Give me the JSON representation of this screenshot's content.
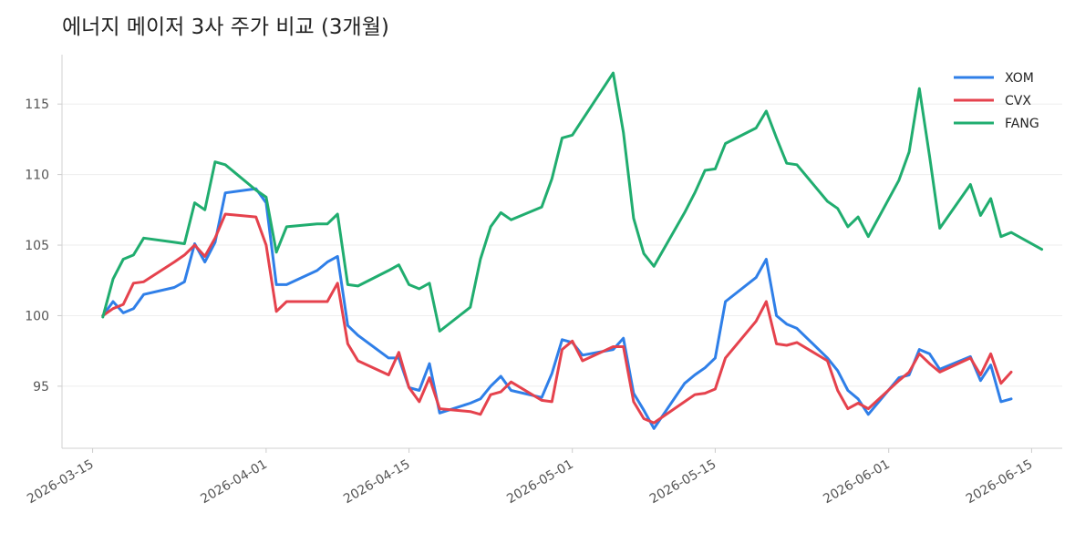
{
  "chart_data": {
    "type": "line",
    "title": "에너지 메이저 3사 주가 비교 (3개월)",
    "xlabel": "",
    "ylabel": "",
    "ylim": [
      90.6,
      118.5
    ],
    "xlim": [
      "2026-03-12",
      "2026-06-18"
    ],
    "grid": "y",
    "legend": "top-right",
    "yticks": [
      95,
      100,
      105,
      110,
      115
    ],
    "xticks": [
      "2026-03-15",
      "2026-04-01",
      "2026-04-15",
      "2026-05-01",
      "2026-05-15",
      "2026-06-01",
      "2026-06-15"
    ],
    "series": [
      {
        "name": "XOM",
        "color": "#2f7fe8",
        "points": [
          [
            "2026-03-16",
            100.0
          ],
          [
            "2026-03-17",
            101.0
          ],
          [
            "2026-03-18",
            100.2
          ],
          [
            "2026-03-19",
            100.5
          ],
          [
            "2026-03-20",
            101.5
          ],
          [
            "2026-03-23",
            102.0
          ],
          [
            "2026-03-24",
            102.4
          ],
          [
            "2026-03-25",
            105.1
          ],
          [
            "2026-03-26",
            103.8
          ],
          [
            "2026-03-27",
            105.2
          ],
          [
            "2026-03-28",
            108.7
          ],
          [
            "2026-03-31",
            109.0
          ],
          [
            "2026-04-01",
            108.0
          ],
          [
            "2026-04-02",
            102.2
          ],
          [
            "2026-04-03",
            102.2
          ],
          [
            "2026-04-06",
            103.2
          ],
          [
            "2026-04-07",
            103.8
          ],
          [
            "2026-04-08",
            104.2
          ],
          [
            "2026-04-09",
            99.3
          ],
          [
            "2026-04-10",
            98.6
          ],
          [
            "2026-04-13",
            97.0
          ],
          [
            "2026-04-14",
            97.0
          ],
          [
            "2026-04-15",
            94.9
          ],
          [
            "2026-04-16",
            94.7
          ],
          [
            "2026-04-17",
            96.6
          ],
          [
            "2026-04-18",
            93.1
          ],
          [
            "2026-04-21",
            93.8
          ],
          [
            "2026-04-22",
            94.1
          ],
          [
            "2026-04-23",
            95.0
          ],
          [
            "2026-04-24",
            95.7
          ],
          [
            "2026-04-25",
            94.7
          ],
          [
            "2026-04-28",
            94.2
          ],
          [
            "2026-04-29",
            95.9
          ],
          [
            "2026-04-30",
            98.3
          ],
          [
            "2026-05-01",
            98.1
          ],
          [
            "2026-05-02",
            97.2
          ],
          [
            "2026-05-05",
            97.6
          ],
          [
            "2026-05-06",
            98.4
          ],
          [
            "2026-05-07",
            94.5
          ],
          [
            "2026-05-08",
            93.3
          ],
          [
            "2026-05-09",
            92.0
          ],
          [
            "2026-05-12",
            95.2
          ],
          [
            "2026-05-13",
            95.8
          ],
          [
            "2026-05-14",
            96.3
          ],
          [
            "2026-05-15",
            97.0
          ],
          [
            "2026-05-16",
            101.0
          ],
          [
            "2026-05-19",
            102.7
          ],
          [
            "2026-05-20",
            104.0
          ],
          [
            "2026-05-21",
            100.0
          ],
          [
            "2026-05-22",
            99.4
          ],
          [
            "2026-05-23",
            99.1
          ],
          [
            "2026-05-26",
            97.0
          ],
          [
            "2026-05-27",
            96.1
          ],
          [
            "2026-05-28",
            94.7
          ],
          [
            "2026-05-29",
            94.1
          ],
          [
            "2026-05-30",
            93.0
          ],
          [
            "2026-06-02",
            95.6
          ],
          [
            "2026-06-03",
            95.8
          ],
          [
            "2026-06-04",
            97.6
          ],
          [
            "2026-06-05",
            97.3
          ],
          [
            "2026-06-06",
            96.2
          ],
          [
            "2026-06-09",
            97.1
          ],
          [
            "2026-06-10",
            95.4
          ],
          [
            "2026-06-11",
            96.5
          ],
          [
            "2026-06-12",
            93.9
          ],
          [
            "2026-06-13",
            94.1
          ]
        ]
      },
      {
        "name": "CVX",
        "color": "#e5424d",
        "points": [
          [
            "2026-03-16",
            100.0
          ],
          [
            "2026-03-17",
            100.5
          ],
          [
            "2026-03-18",
            100.8
          ],
          [
            "2026-03-19",
            102.3
          ],
          [
            "2026-03-20",
            102.4
          ],
          [
            "2026-03-23",
            103.8
          ],
          [
            "2026-03-24",
            104.3
          ],
          [
            "2026-03-25",
            105.0
          ],
          [
            "2026-03-26",
            104.2
          ],
          [
            "2026-03-27",
            105.5
          ],
          [
            "2026-03-28",
            107.2
          ],
          [
            "2026-03-31",
            107.0
          ],
          [
            "2026-04-01",
            105.0
          ],
          [
            "2026-04-02",
            100.3
          ],
          [
            "2026-04-03",
            101.0
          ],
          [
            "2026-04-06",
            101.0
          ],
          [
            "2026-04-07",
            101.0
          ],
          [
            "2026-04-08",
            102.3
          ],
          [
            "2026-04-09",
            98.0
          ],
          [
            "2026-04-10",
            96.8
          ],
          [
            "2026-04-13",
            95.8
          ],
          [
            "2026-04-14",
            97.4
          ],
          [
            "2026-04-15",
            94.9
          ],
          [
            "2026-04-16",
            93.9
          ],
          [
            "2026-04-17",
            95.6
          ],
          [
            "2026-04-18",
            93.4
          ],
          [
            "2026-04-21",
            93.2
          ],
          [
            "2026-04-22",
            93.0
          ],
          [
            "2026-04-23",
            94.4
          ],
          [
            "2026-04-24",
            94.6
          ],
          [
            "2026-04-25",
            95.3
          ],
          [
            "2026-04-28",
            94.0
          ],
          [
            "2026-04-29",
            93.9
          ],
          [
            "2026-04-30",
            97.6
          ],
          [
            "2026-05-01",
            98.2
          ],
          [
            "2026-05-02",
            96.8
          ],
          [
            "2026-05-05",
            97.8
          ],
          [
            "2026-05-06",
            97.8
          ],
          [
            "2026-05-07",
            93.9
          ],
          [
            "2026-05-08",
            92.7
          ],
          [
            "2026-05-09",
            92.4
          ],
          [
            "2026-05-12",
            93.9
          ],
          [
            "2026-05-13",
            94.4
          ],
          [
            "2026-05-14",
            94.5
          ],
          [
            "2026-05-15",
            94.8
          ],
          [
            "2026-05-16",
            97.0
          ],
          [
            "2026-05-19",
            99.6
          ],
          [
            "2026-05-20",
            101.0
          ],
          [
            "2026-05-21",
            98.0
          ],
          [
            "2026-05-22",
            97.9
          ],
          [
            "2026-05-23",
            98.1
          ],
          [
            "2026-05-26",
            96.8
          ],
          [
            "2026-05-27",
            94.7
          ],
          [
            "2026-05-28",
            93.4
          ],
          [
            "2026-05-29",
            93.8
          ],
          [
            "2026-05-30",
            93.4
          ],
          [
            "2026-06-02",
            95.4
          ],
          [
            "2026-06-03",
            96.0
          ],
          [
            "2026-06-04",
            97.3
          ],
          [
            "2026-06-05",
            96.6
          ],
          [
            "2026-06-06",
            96.0
          ],
          [
            "2026-06-09",
            97.0
          ],
          [
            "2026-06-10",
            95.8
          ],
          [
            "2026-06-11",
            97.3
          ],
          [
            "2026-06-12",
            95.2
          ],
          [
            "2026-06-13",
            96.0
          ]
        ]
      },
      {
        "name": "FANG",
        "color": "#20ad6f",
        "points": [
          [
            "2026-03-16",
            99.9
          ],
          [
            "2026-03-17",
            102.6
          ],
          [
            "2026-03-18",
            104.0
          ],
          [
            "2026-03-19",
            104.3
          ],
          [
            "2026-03-20",
            105.5
          ],
          [
            "2026-03-23",
            105.2
          ],
          [
            "2026-03-24",
            105.1
          ],
          [
            "2026-03-25",
            108.0
          ],
          [
            "2026-03-26",
            107.5
          ],
          [
            "2026-03-27",
            110.9
          ],
          [
            "2026-03-28",
            110.7
          ],
          [
            "2026-03-31",
            108.9
          ],
          [
            "2026-04-01",
            108.4
          ],
          [
            "2026-04-02",
            104.5
          ],
          [
            "2026-04-03",
            106.3
          ],
          [
            "2026-04-06",
            106.5
          ],
          [
            "2026-04-07",
            106.5
          ],
          [
            "2026-04-08",
            107.2
          ],
          [
            "2026-04-09",
            102.2
          ],
          [
            "2026-04-10",
            102.1
          ],
          [
            "2026-04-13",
            103.2
          ],
          [
            "2026-04-14",
            103.6
          ],
          [
            "2026-04-15",
            102.2
          ],
          [
            "2026-04-16",
            101.9
          ],
          [
            "2026-04-17",
            102.3
          ],
          [
            "2026-04-18",
            98.9
          ],
          [
            "2026-04-21",
            100.6
          ],
          [
            "2026-04-22",
            104.0
          ],
          [
            "2026-04-23",
            106.3
          ],
          [
            "2026-04-24",
            107.3
          ],
          [
            "2026-04-25",
            106.8
          ],
          [
            "2026-04-28",
            107.7
          ],
          [
            "2026-04-29",
            109.7
          ],
          [
            "2026-04-30",
            112.6
          ],
          [
            "2026-05-01",
            112.8
          ],
          [
            "2026-05-02",
            113.9
          ],
          [
            "2026-05-05",
            117.2
          ],
          [
            "2026-05-06",
            113.0
          ],
          [
            "2026-05-07",
            106.9
          ],
          [
            "2026-05-08",
            104.4
          ],
          [
            "2026-05-09",
            103.5
          ],
          [
            "2026-05-12",
            107.3
          ],
          [
            "2026-05-13",
            108.7
          ],
          [
            "2026-05-14",
            110.3
          ],
          [
            "2026-05-15",
            110.4
          ],
          [
            "2026-05-16",
            112.2
          ],
          [
            "2026-05-19",
            113.3
          ],
          [
            "2026-05-20",
            114.5
          ],
          [
            "2026-05-21",
            112.6
          ],
          [
            "2026-05-22",
            110.8
          ],
          [
            "2026-05-23",
            110.7
          ],
          [
            "2026-05-26",
            108.1
          ],
          [
            "2026-05-27",
            107.6
          ],
          [
            "2026-05-28",
            106.3
          ],
          [
            "2026-05-29",
            107.0
          ],
          [
            "2026-05-30",
            105.6
          ],
          [
            "2026-06-02",
            109.6
          ],
          [
            "2026-06-03",
            111.6
          ],
          [
            "2026-06-04",
            116.1
          ],
          [
            "2026-06-05",
            111.3
          ],
          [
            "2026-06-06",
            106.2
          ],
          [
            "2026-06-09",
            109.3
          ],
          [
            "2026-06-10",
            107.1
          ],
          [
            "2026-06-11",
            108.3
          ],
          [
            "2026-06-12",
            105.6
          ],
          [
            "2026-06-13",
            105.9
          ],
          [
            "2026-06-16",
            104.7
          ]
        ]
      }
    ]
  }
}
